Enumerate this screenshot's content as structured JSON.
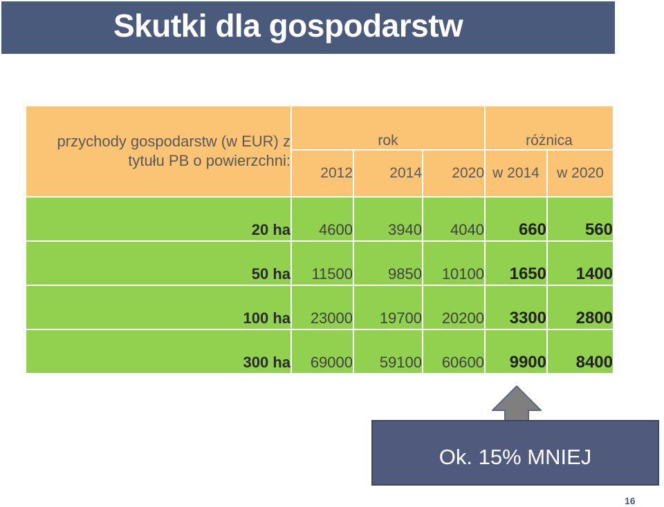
{
  "slide": {
    "title": "Skutki dla gospodarstw",
    "page_number": "16"
  },
  "table": {
    "description_line1": "przychody gospodarstw (w EUR) z",
    "description_line2": "tytułu PB  o powierzchni:",
    "group_rok": "rok",
    "group_roznica": "różnica",
    "years": [
      "2012",
      "2014",
      "2020"
    ],
    "diff_headers": [
      "w 2014",
      "w 2020"
    ],
    "rows": [
      {
        "label": "20 ha",
        "y2012": "4600",
        "y2014": "3940",
        "y2020": "4040",
        "d2014": "660",
        "d2020": "560"
      },
      {
        "label": "50 ha",
        "y2012": "11500",
        "y2014": "9850",
        "y2020": "10100",
        "d2014": "1650",
        "d2020": "1400"
      },
      {
        "label": "100 ha",
        "y2012": "23000",
        "y2014": "19700",
        "y2020": "20200",
        "d2014": "3300",
        "d2020": "2800"
      },
      {
        "label": "300 ha",
        "y2012": "69000",
        "y2014": "59100",
        "y2020": "60600",
        "d2014": "9900",
        "d2020": "8400"
      }
    ]
  },
  "callout": {
    "text": "Ok. 15% MNIEJ"
  },
  "colors": {
    "title_bar": "#4a5a7c",
    "header_fill": "#fbc475",
    "body_fill": "#92d050",
    "callout_fill": "#4f5a7c",
    "arrow_fill": "#7f7f7f"
  },
  "icons": {
    "arrow": "up-arrow-icon"
  }
}
